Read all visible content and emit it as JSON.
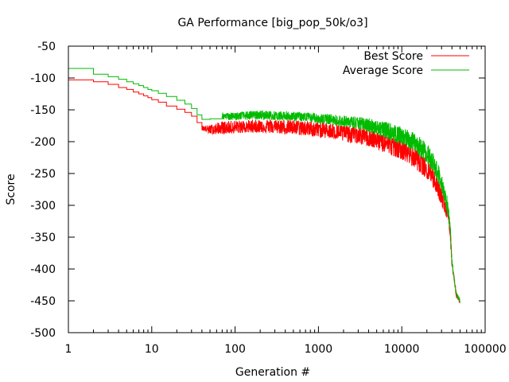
{
  "chart_data": {
    "type": "line",
    "title": "GA Performance [big_pop_50k/o3]",
    "xlabel": "Generation #",
    "ylabel": "Score",
    "xscale": "log",
    "xlim": [
      1,
      100000
    ],
    "ylim": [
      -500,
      -50
    ],
    "x_ticks": [
      1,
      10,
      100,
      1000,
      10000,
      100000
    ],
    "x_tick_labels": [
      "1",
      "10",
      "100",
      "1000",
      "10000",
      "100000"
    ],
    "y_ticks": [
      -500,
      -450,
      -400,
      -350,
      -300,
      -250,
      -200,
      -150,
      -100,
      -50
    ],
    "y_tick_labels": [
      "-500",
      "-450",
      "-400",
      "-350",
      "-300",
      "-250",
      "-200",
      "-150",
      "-100",
      "-50"
    ],
    "grid": false,
    "legend_position": "top-right",
    "series": [
      {
        "name": "Best Score",
        "color": "#ff0000",
        "step": true,
        "noisy_from": 40,
        "x": [
          1,
          2,
          3,
          4,
          5,
          6,
          7,
          8,
          9,
          10,
          12,
          15,
          20,
          25,
          30,
          35,
          40,
          50,
          70,
          100,
          150,
          200,
          300,
          500,
          700,
          1000,
          1500,
          2000,
          3000,
          4000,
          5000,
          7000,
          10000,
          15000,
          20000,
          25000,
          30000,
          35000,
          38000,
          40000,
          42000,
          45000,
          50000
        ],
        "y": [
          -103,
          -106,
          -110,
          -115,
          -118,
          -122,
          -125,
          -128,
          -131,
          -134,
          -138,
          -144,
          -149,
          -154,
          -160,
          -170,
          -178,
          -182,
          -180,
          -178,
          -177,
          -176,
          -177,
          -178,
          -179,
          -181,
          -183,
          -186,
          -189,
          -192,
          -196,
          -202,
          -210,
          -225,
          -240,
          -260,
          -285,
          -310,
          -345,
          -390,
          -410,
          -440,
          -450
        ],
        "upper": [
          -103,
          -106,
          -110,
          -115,
          -118,
          -122,
          -125,
          -128,
          -131,
          -134,
          -138,
          -144,
          -149,
          -154,
          -160,
          -170,
          -175,
          -174,
          -168,
          -167,
          -166,
          -165,
          -165,
          -166,
          -167,
          -169,
          -171,
          -174,
          -177,
          -180,
          -184,
          -190,
          -198,
          -212,
          -226,
          -246,
          -272,
          -300,
          -338,
          -385,
          -405,
          -436,
          -447
        ],
        "lower": [
          -103,
          -106,
          -110,
          -115,
          -118,
          -122,
          -125,
          -128,
          -131,
          -134,
          -138,
          -144,
          -149,
          -154,
          -160,
          -170,
          -182,
          -188,
          -188,
          -187,
          -186,
          -186,
          -187,
          -189,
          -191,
          -193,
          -196,
          -200,
          -204,
          -208,
          -213,
          -220,
          -228,
          -244,
          -259,
          -277,
          -300,
          -325,
          -352,
          -397,
          -415,
          -445,
          -453
        ]
      },
      {
        "name": "Average Score",
        "color": "#00bb00",
        "step": true,
        "noisy_from": 70,
        "x": [
          1,
          2,
          3,
          4,
          5,
          6,
          7,
          8,
          9,
          10,
          12,
          15,
          20,
          25,
          30,
          35,
          40,
          50,
          70,
          100,
          150,
          200,
          300,
          500,
          700,
          1000,
          1500,
          2000,
          3000,
          4000,
          5000,
          7000,
          10000,
          15000,
          20000,
          25000,
          30000,
          35000,
          38000,
          40000,
          42000,
          45000,
          50000
        ],
        "y": [
          -85,
          -94,
          -98,
          -102,
          -106,
          -109,
          -112,
          -115,
          -118,
          -120,
          -124,
          -129,
          -135,
          -141,
          -148,
          -158,
          -165,
          -164,
          -160,
          -160,
          -159,
          -159,
          -160,
          -161,
          -162,
          -164,
          -166,
          -169,
          -172,
          -175,
          -179,
          -185,
          -192,
          -205,
          -220,
          -240,
          -265,
          -300,
          -335,
          -390,
          -410,
          -440,
          -450
        ],
        "upper": [
          -85,
          -94,
          -98,
          -102,
          -106,
          -109,
          -112,
          -115,
          -118,
          -120,
          -124,
          -129,
          -135,
          -141,
          -148,
          -158,
          -165,
          -162,
          -155,
          -154,
          -152,
          -151,
          -152,
          -153,
          -154,
          -155,
          -157,
          -159,
          -161,
          -163,
          -166,
          -170,
          -177,
          -188,
          -202,
          -222,
          -250,
          -285,
          -325,
          -384,
          -406,
          -437,
          -447
        ],
        "lower": [
          -85,
          -94,
          -98,
          -102,
          -106,
          -109,
          -112,
          -115,
          -118,
          -120,
          -124,
          -129,
          -135,
          -141,
          -148,
          -158,
          -165,
          -166,
          -166,
          -166,
          -165,
          -165,
          -166,
          -167,
          -169,
          -171,
          -174,
          -177,
          -181,
          -185,
          -190,
          -197,
          -205,
          -218,
          -233,
          -253,
          -278,
          -312,
          -344,
          -396,
          -414,
          -443,
          -453
        ]
      }
    ]
  }
}
